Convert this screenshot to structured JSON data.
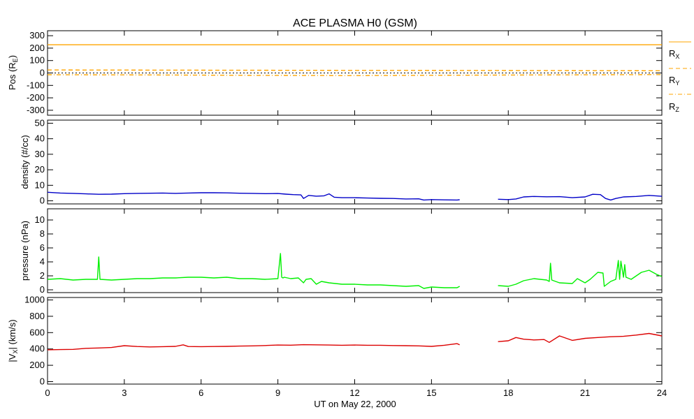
{
  "chart_data": [
    {
      "type": "line",
      "title": "ACE PLASMA H0 (GSM)",
      "ylabel": "Pos (R_E)",
      "ylim": [
        -340,
        340
      ],
      "yticks": [
        -300,
        -200,
        -100,
        0,
        100,
        200,
        300
      ],
      "series": [
        {
          "name": "RX",
          "color": "#ffa500",
          "dash": "solid",
          "x": [
            0,
            24
          ],
          "y": [
            227,
            227
          ]
        },
        {
          "name": "RY",
          "color": "#ffa500",
          "dash": "dashed",
          "x": [
            0,
            4,
            8,
            12,
            16,
            20,
            24
          ],
          "y": [
            24,
            23,
            22,
            21,
            20,
            19,
            18
          ]
        },
        {
          "name": "RZ",
          "color": "#ffa500",
          "dash": "dashdot",
          "x": [
            0,
            4,
            8,
            12,
            16,
            20,
            24
          ],
          "y": [
            -14,
            -16,
            -19,
            -21,
            -18,
            -15,
            -13
          ]
        }
      ],
      "zero_line": true
    },
    {
      "type": "line",
      "ylabel": "density (#/cc)",
      "ylim": [
        -2,
        52
      ],
      "yticks": [
        0,
        10,
        20,
        30,
        40,
        50
      ],
      "series": [
        {
          "name": "density",
          "color": "#0000c8",
          "x": [
            0,
            0.5,
            1,
            1.5,
            2,
            2.5,
            3,
            3.5,
            4,
            4.5,
            5,
            5.5,
            6,
            6.5,
            7,
            7.5,
            8,
            8.5,
            9,
            9.3,
            9.6,
            9.9,
            10,
            10.2,
            10.5,
            10.8,
            11,
            11.2,
            11.5,
            12,
            12.5,
            13,
            13.5,
            14,
            14.5,
            14.7,
            15,
            15.5,
            16,
            16.1,
            null,
            17.6,
            18,
            18.3,
            18.6,
            19,
            19.5,
            20,
            20.5,
            21,
            21.3,
            21.6,
            21.8,
            22,
            22.2,
            22.5,
            23,
            23.5,
            24
          ],
          "y": [
            5.5,
            5,
            4.8,
            4.5,
            4.2,
            4.3,
            4.6,
            4.8,
            4.9,
            5,
            4.8,
            5,
            5.2,
            5.2,
            5.1,
            4.9,
            4.8,
            4.6,
            4.7,
            4.3,
            4,
            3.8,
            1.5,
            3.5,
            3,
            3.2,
            4.5,
            2.3,
            2,
            2,
            1.8,
            1.6,
            1.5,
            1.2,
            1.3,
            0.5,
            0.8,
            0.6,
            0.5,
            0.7,
            null,
            1,
            0.8,
            1.2,
            2.5,
            2.8,
            2.6,
            2.7,
            2,
            2.5,
            4.2,
            4,
            1.5,
            0.5,
            1.5,
            2.5,
            2.8,
            3.5,
            2.9
          ]
        }
      ]
    },
    {
      "type": "line",
      "ylabel": "pressure (nPa)",
      "ylim": [
        -0.4,
        11.6
      ],
      "yticks": [
        0,
        2,
        4,
        6,
        8,
        10
      ],
      "series": [
        {
          "name": "pressure",
          "color": "#00f000",
          "x": [
            0,
            0.5,
            1,
            1.5,
            1.95,
            2,
            2.05,
            2.5,
            3,
            3.5,
            4,
            4.5,
            5,
            5.5,
            6,
            6.5,
            7,
            7.5,
            8,
            8.5,
            9,
            9.1,
            9.15,
            9.2,
            9.25,
            9.5,
            9.8,
            10,
            10.1,
            10.3,
            10.5,
            10.7,
            11,
            11.5,
            12,
            12.5,
            13,
            13.5,
            14,
            14.5,
            14.7,
            15,
            15.5,
            16,
            16.1,
            null,
            17.6,
            18,
            18.3,
            18.6,
            19,
            19.5,
            19.6,
            19.65,
            19.7,
            20,
            20.5,
            20.7,
            21,
            21.2,
            21.5,
            21.7,
            21.75,
            22,
            22.2,
            22.3,
            22.35,
            22.4,
            22.5,
            22.55,
            22.6,
            22.8,
            23,
            23.2,
            23.5,
            23.8,
            24
          ],
          "y": [
            1.5,
            1.6,
            1.4,
            1.5,
            1.5,
            4.7,
            1.5,
            1.4,
            1.5,
            1.6,
            1.6,
            1.7,
            1.7,
            1.8,
            1.8,
            1.7,
            1.8,
            1.6,
            1.6,
            1.5,
            1.6,
            5.2,
            1.8,
            1.7,
            1.8,
            1.6,
            1.7,
            1,
            1.5,
            1.6,
            0.8,
            1.2,
            1,
            0.8,
            0.8,
            0.7,
            0.7,
            0.6,
            0.5,
            0.6,
            0.2,
            0.4,
            0.3,
            0.3,
            0.5,
            null,
            0.6,
            0.5,
            0.8,
            1.3,
            1.6,
            1.4,
            1.2,
            3.8,
            1.4,
            1,
            0.9,
            1.6,
            1,
            1.5,
            2.5,
            2.4,
            0.5,
            1.2,
            1.5,
            4.2,
            1.5,
            4.1,
            1.8,
            3.6,
            1.8,
            1.5,
            2,
            2.5,
            2.8,
            2.2,
            1.9
          ]
        }
      ]
    },
    {
      "type": "line",
      "ylabel": "|V_X| (km/s)",
      "xlabel": "UT on May 22, 2000",
      "xlim": [
        0,
        24
      ],
      "xticks": [
        0,
        3,
        6,
        9,
        12,
        15,
        18,
        21,
        24
      ],
      "ylim": [
        -30,
        1030
      ],
      "yticks": [
        0,
        200,
        400,
        600,
        800,
        1000
      ],
      "series": [
        {
          "name": "velocity",
          "color": "#dc0000",
          "x": [
            0,
            0.5,
            1,
            1.5,
            2,
            2.5,
            3,
            3.5,
            4,
            4.5,
            5,
            5.3,
            5.5,
            6,
            6.5,
            7,
            7.5,
            8,
            8.5,
            9,
            9.5,
            10,
            10.5,
            11,
            11.5,
            12,
            12.5,
            13,
            13.5,
            14,
            14.5,
            15,
            15.5,
            16,
            16.1,
            null,
            17.6,
            18,
            18.3,
            18.6,
            19,
            19.4,
            19.6,
            20,
            20.5,
            21,
            21.5,
            22,
            22.5,
            23,
            23.5,
            24
          ],
          "y": [
            390,
            392,
            395,
            408,
            412,
            418,
            440,
            430,
            425,
            428,
            432,
            450,
            430,
            428,
            430,
            432,
            435,
            438,
            442,
            448,
            446,
            452,
            450,
            448,
            445,
            448,
            445,
            445,
            442,
            440,
            438,
            432,
            445,
            465,
            450,
            null,
            490,
            500,
            540,
            520,
            510,
            515,
            480,
            560,
            505,
            530,
            540,
            550,
            555,
            570,
            590,
            560
          ]
        }
      ]
    }
  ],
  "legend": {
    "rx_main": "R",
    "rx_sub": "X",
    "ry_main": "R",
    "ry_sub": "Y",
    "rz_main": "R",
    "rz_sub": "Z"
  },
  "panel1_ylabel_main": "Pos (R",
  "panel1_ylabel_sub": "E",
  "panel1_ylabel_end": ")",
  "panel4_ylabel_pre": "|V",
  "panel4_ylabel_sub": "X",
  "panel4_ylabel_end": "| (km/s)"
}
